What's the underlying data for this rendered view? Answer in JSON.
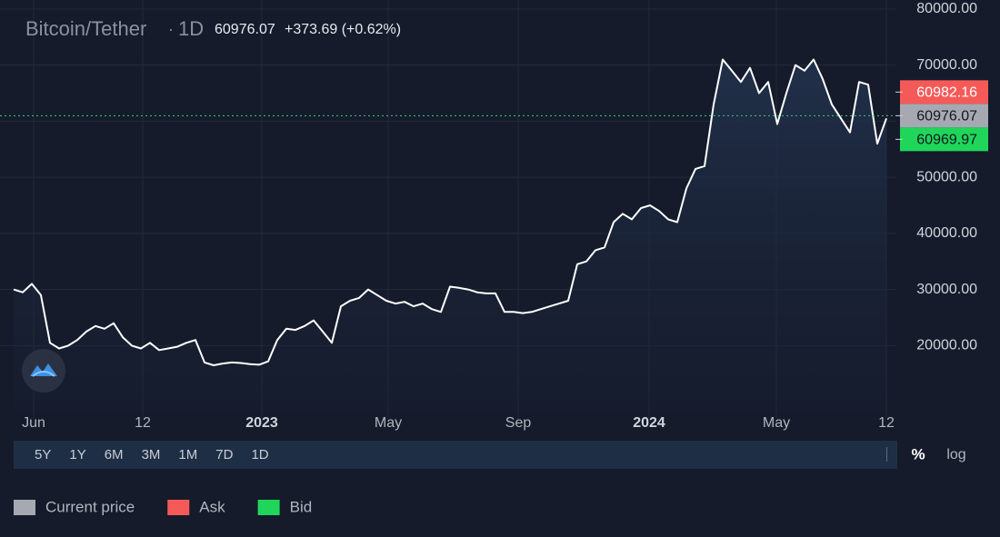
{
  "header": {
    "symbol": "Bitcoin/Tether",
    "interval": "1D",
    "change": "+373.69 (+0.62%)"
  },
  "chart_data": {
    "type": "line",
    "series": [
      {
        "color": "#ffffff",
        "values": [
          30000,
          29500,
          31000,
          29000,
          20500,
          19500,
          20000,
          21000,
          22500,
          23500,
          23000,
          24000,
          21500,
          20000,
          19500,
          20500,
          19200,
          19500,
          19800,
          20500,
          21000,
          17000,
          16500,
          16800,
          17000,
          16900,
          16700,
          16600,
          17200,
          21000,
          23000,
          22800,
          23500,
          24500,
          22500,
          20500,
          27000,
          28000,
          28500,
          30000,
          29000,
          28000,
          27500,
          27800,
          27000,
          27500,
          26500,
          26000,
          30500,
          30300,
          30000,
          29500,
          29300,
          29300,
          26000,
          26000,
          25800,
          26000,
          26500,
          27000,
          27500,
          28000,
          34500,
          35000,
          37000,
          37500,
          42000,
          43500,
          42500,
          44500,
          45000,
          44000,
          42500,
          42000,
          48000,
          51500,
          52000,
          63000,
          71000,
          69000,
          67000,
          69500,
          65000,
          67000,
          59500,
          65000,
          70000,
          69000,
          71000,
          67500,
          63000,
          60500,
          58000,
          67000,
          66500,
          56000,
          60500
        ]
      }
    ],
    "xlim": [
      0,
      96
    ],
    "xticks": [
      {
        "value": 2.2,
        "label": "Jun"
      },
      {
        "value": 14.2,
        "label": "12"
      },
      {
        "value": 27.3,
        "label": "2023"
      },
      {
        "value": 41.2,
        "label": "May"
      },
      {
        "value": 55.5,
        "label": "Sep"
      },
      {
        "value": 69.9,
        "label": "2024"
      },
      {
        "value": 83.9,
        "label": "May"
      },
      {
        "value": 96,
        "label": "12"
      }
    ],
    "ylim": [
      8400,
      81600
    ],
    "yticks": [
      {
        "value": 80000,
        "label": "80000.00"
      },
      {
        "value": 70000,
        "label": "70000.00"
      },
      {
        "value": 60000,
        "label": "60000.00"
      },
      {
        "value": 50000,
        "label": "50000.00"
      },
      {
        "value": 40000,
        "label": "40000.00"
      },
      {
        "value": 30000,
        "label": "30000.00"
      },
      {
        "value": 20000,
        "label": "20000.00"
      }
    ],
    "log": false,
    "grid": true,
    "current_price": 60976.07,
    "ask": 60982.16,
    "bid": 60969.97,
    "legend": [
      {
        "name": "Current price",
        "color": "#a6a9b2"
      },
      {
        "name": "Ask",
        "color": "#f55a58"
      },
      {
        "name": "Bid",
        "color": "#1fd65a"
      }
    ]
  },
  "range_buttons": [
    "5Y",
    "1Y",
    "6M",
    "3M",
    "1M",
    "7D",
    "1D"
  ],
  "scale_buttons": [
    "%",
    "log"
  ]
}
